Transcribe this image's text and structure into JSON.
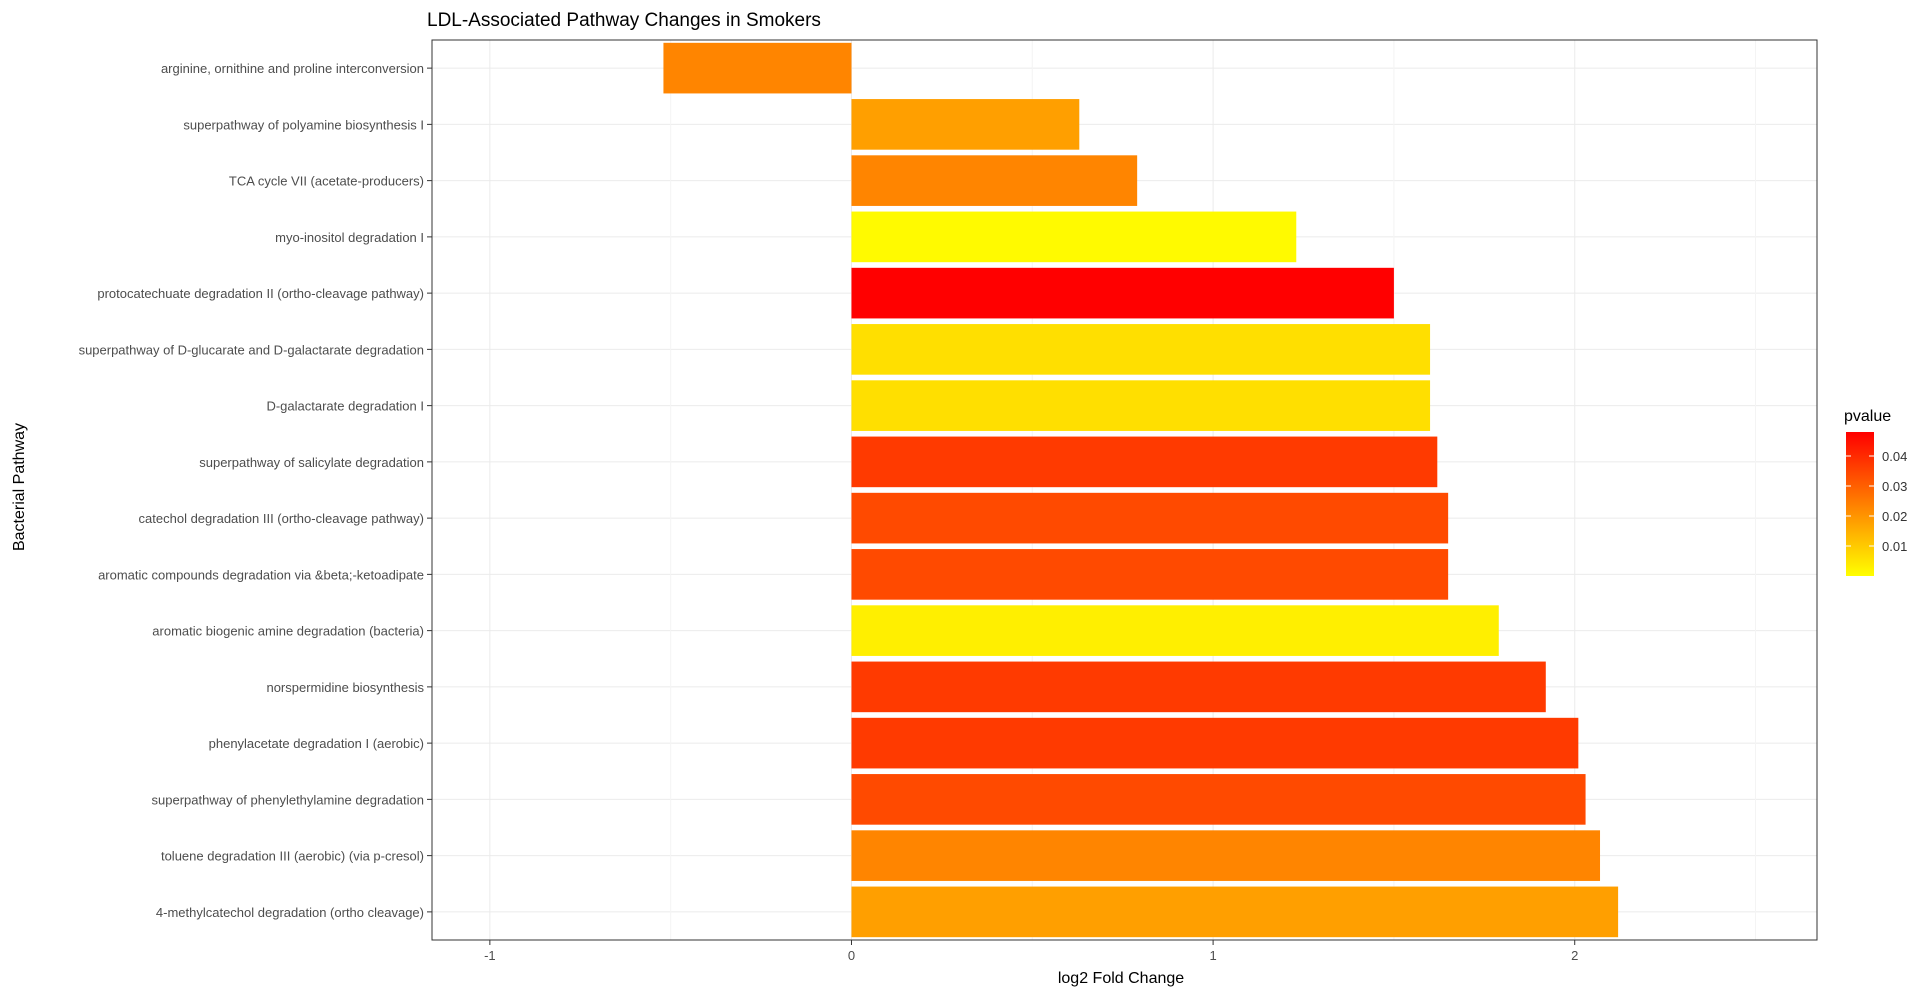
{
  "chart_data": {
    "type": "bar",
    "orientation": "horizontal",
    "title": "LDL-Associated Pathway Changes in Smokers",
    "xlabel": "log2 Fold Change",
    "ylabel": "Bacterial Pathway",
    "xlim": [
      -1.16,
      2.67
    ],
    "x_ticks": [
      -1,
      0,
      1,
      2
    ],
    "x_tick_labels": [
      "-1",
      "0",
      "1",
      "2"
    ],
    "grid": true,
    "categories": [
      "arginine, ornithine and proline interconversion",
      "superpathway of polyamine biosynthesis I",
      "TCA cycle VII (acetate-producers)",
      "myo-inositol degradation I",
      "protocatechuate degradation II (ortho-cleavage pathway)",
      "superpathway of D-glucarate and D-galactarate degradation",
      "D-galactarate degradation I",
      "superpathway of salicylate degradation",
      "catechol degradation III (ortho-cleavage pathway)",
      "aromatic compounds degradation via &beta;-ketoadipate",
      "aromatic biogenic amine degradation (bacteria)",
      "norspermidine biosynthesis",
      "phenylacetate degradation I (aerobic)",
      "superpathway of phenylethylamine degradation",
      "toluene degradation III (aerobic) (via p-cresol)",
      "4-methylcatechol degradation (ortho cleavage)"
    ],
    "values": [
      -0.52,
      0.63,
      0.79,
      1.23,
      1.5,
      1.6,
      1.6,
      1.62,
      1.65,
      1.65,
      1.79,
      1.92,
      2.01,
      2.03,
      2.07,
      2.12
    ],
    "pvalues": [
      0.023,
      0.018,
      0.023,
      0.001,
      0.048,
      0.006,
      0.006,
      0.037,
      0.034,
      0.034,
      0.003,
      0.037,
      0.037,
      0.034,
      0.023,
      0.018
    ],
    "legend": {
      "title": "pvalue",
      "placement": "right",
      "ticks": [
        0.01,
        0.02,
        0.03,
        0.04
      ],
      "tick_labels": [
        "0.01",
        "0.02",
        "0.03",
        "0.04"
      ],
      "range": [
        0.0,
        0.048
      ],
      "low_color": "#FFFF00",
      "high_color": "#FF0000"
    }
  }
}
